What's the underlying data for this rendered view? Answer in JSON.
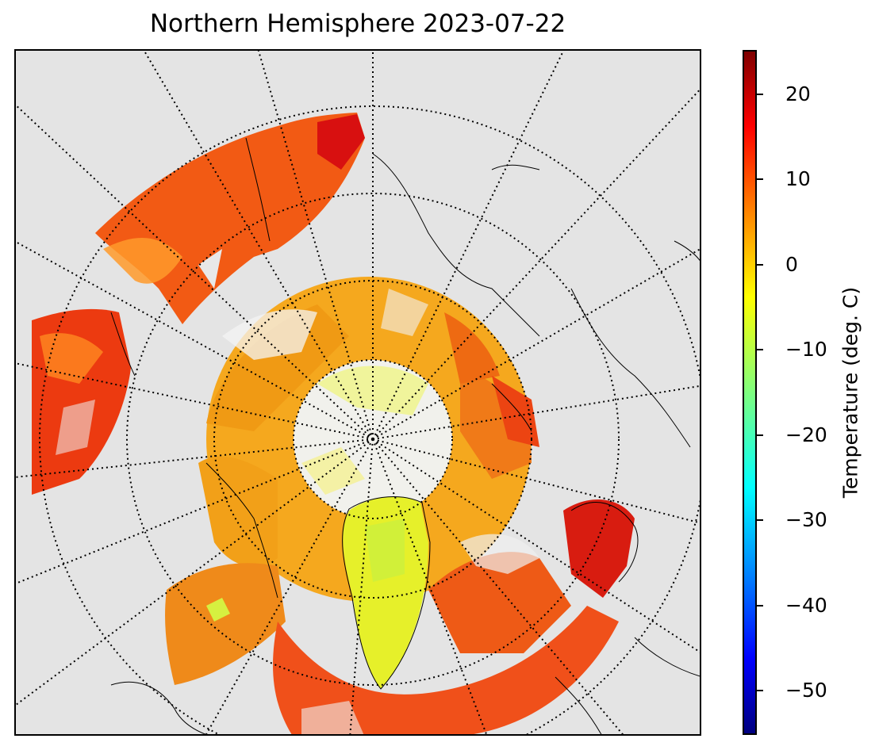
{
  "title": "Northern Hemisphere 2023-07-22",
  "map": {
    "projection": "north polar stereographic",
    "missing_color": "#e4e4e4",
    "graticule": "dotted meridians every 10 deg, latitude circles"
  },
  "colorbar": {
    "label": "Temperature (deg. C)",
    "colormap": "jet",
    "range": [
      -55,
      25
    ],
    "ticks": [
      {
        "value": 20,
        "label": "20"
      },
      {
        "value": 10,
        "label": "10"
      },
      {
        "value": 0,
        "label": "0"
      },
      {
        "value": -10,
        "label": "−10"
      },
      {
        "value": -20,
        "label": "−20"
      },
      {
        "value": -30,
        "label": "−30"
      },
      {
        "value": -40,
        "label": "−40"
      },
      {
        "value": -50,
        "label": "−50"
      }
    ]
  }
}
